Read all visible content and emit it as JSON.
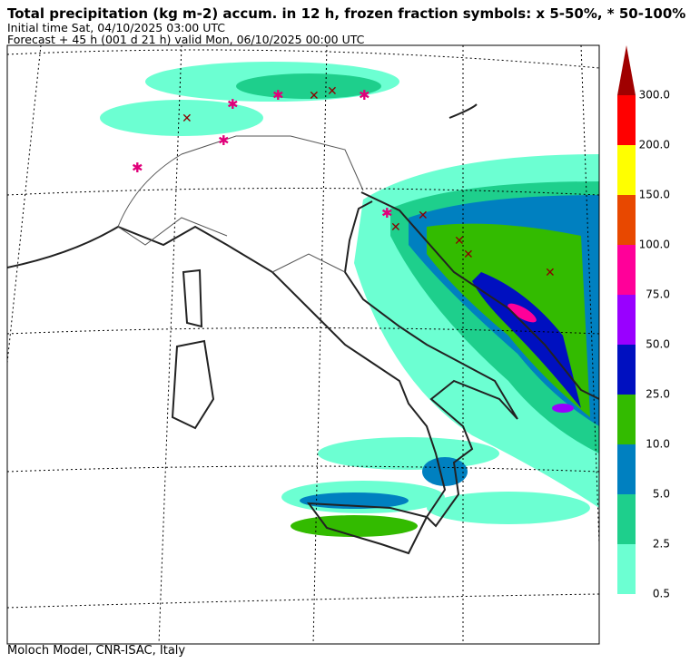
{
  "header": {
    "title": "Total precipitation (kg m-2) accum. in 12 h, frozen fraction symbols: x 5-50%, * 50-100%",
    "initial_time": "Initial time  Sat, 04/10/2025  03:00 UTC",
    "forecast": "Forecast  +  45 h  (001 d 21 h)  valid Mon, 06/10/2025 00:00 UTC"
  },
  "legend": {
    "arrow_color": "#a00000",
    "items": [
      {
        "label": "0.5",
        "color": "#6cffd2"
      },
      {
        "label": "2.5",
        "color": "#1ecf8c"
      },
      {
        "label": "5.0",
        "color": "#0080c0"
      },
      {
        "label": "10.0",
        "color": "#33bb00"
      },
      {
        "label": "25.0",
        "color": "#0010c0"
      },
      {
        "label": "50.0",
        "color": "#9900ff"
      },
      {
        "label": "75.0",
        "color": "#ff0099"
      },
      {
        "label": "100.0",
        "color": "#e84800"
      },
      {
        "label": "150.0",
        "color": "#ffff00"
      },
      {
        "label": "200.0",
        "color": "#ff0000"
      },
      {
        "label": "300.0",
        "color": null
      }
    ]
  },
  "footer": "Moloch Model, CNR-ISAC, Italy"
}
